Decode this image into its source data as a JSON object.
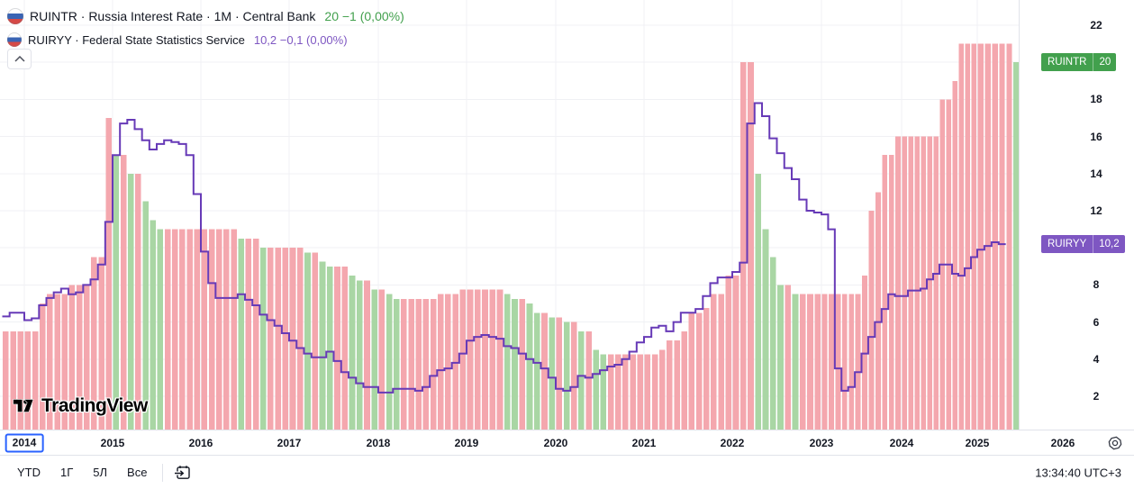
{
  "legend": {
    "rows": [
      {
        "symbol_title": "RUINTR · Russia Interest Rate · 1M · Central Bank",
        "value_text": "20 −1 (0,00%)",
        "value_color": "#42a04d"
      },
      {
        "symbol_title": "RUIRYY · Federal State Statistics Service",
        "value_text": "10,2 −0,1 (0,00%)",
        "value_color": "#7e57c2"
      }
    ],
    "flag_icon": "russia-flag"
  },
  "watermark": {
    "text": "TradingView"
  },
  "price_labels": [
    {
      "name": "RUINTR",
      "value": "20",
      "bg": "#42a04d",
      "at_value": 20
    },
    {
      "name": "RUIRYY",
      "value": "10,2",
      "bg": "#7e57c2",
      "at_value": 10.2
    }
  ],
  "toolbar": {
    "ranges": [
      "YTD",
      "1Г",
      "5Л",
      "Все"
    ],
    "clock": "13:34:40 UTC+3"
  },
  "chart_data": {
    "type": "bar",
    "subtype": "columns + step-line overlay",
    "grid": true,
    "legend_position": "top-left",
    "x_axis": {
      "tick_labels": [
        "2014",
        "2015",
        "2016",
        "2017",
        "2018",
        "2019",
        "2020",
        "2021",
        "2022",
        "2023",
        "2024",
        "2025",
        "2026"
      ],
      "boxed_tick": "2014"
    },
    "y_axis": {
      "ticks": [
        2,
        4,
        6,
        8,
        10,
        12,
        14,
        16,
        18,
        20,
        22
      ],
      "ylim": [
        0.2,
        23.2
      ],
      "side": "right"
    },
    "palette": {
      "column_rise_or_flat": "#f4a7ae",
      "column_fall": "#a9d6a4",
      "step_line": "#673ab7",
      "grid_line": "#f0f1f4",
      "axis_border": "#e1e3ea"
    },
    "series": [
      {
        "id": "RUINTR",
        "style": "columns",
        "start_year": 2013,
        "start_month": 10,
        "color_rule": "green when value falls vs previous month, pink otherwise",
        "values": [
          5.5,
          5.5,
          5.5,
          5.5,
          5.5,
          7,
          7.5,
          7.5,
          7.5,
          8,
          8,
          8,
          9.5,
          9.5,
          17,
          15,
          15,
          14,
          14,
          12.5,
          11.5,
          11,
          11,
          11,
          11,
          11,
          11,
          11,
          11,
          11,
          11,
          11,
          10.5,
          10.5,
          10.5,
          10,
          10,
          10,
          10,
          10,
          10,
          9.75,
          9.75,
          9.25,
          9,
          9,
          9,
          8.5,
          8.25,
          8.25,
          7.75,
          7.75,
          7.5,
          7.25,
          7.25,
          7.25,
          7.25,
          7.25,
          7.25,
          7.5,
          7.5,
          7.5,
          7.75,
          7.75,
          7.75,
          7.75,
          7.75,
          7.75,
          7.5,
          7.25,
          7.25,
          7,
          6.5,
          6.5,
          6.25,
          6.25,
          6,
          6,
          5.5,
          5.5,
          4.5,
          4.25,
          4.25,
          4.25,
          4.25,
          4.25,
          4.25,
          4.25,
          4.25,
          4.5,
          5,
          5,
          5.5,
          6.5,
          6.5,
          6.75,
          7.5,
          7.5,
          8.5,
          8.5,
          20,
          20,
          14,
          11,
          9.5,
          8,
          8,
          7.5,
          7.5,
          7.5,
          7.5,
          7.5,
          7.5,
          7.5,
          7.5,
          7.5,
          7.5,
          8.5,
          12,
          13,
          15,
          15,
          16,
          16,
          16,
          16,
          16,
          16,
          16,
          18,
          18,
          19,
          21,
          21,
          21,
          21,
          21,
          21,
          21,
          21,
          20
        ]
      },
      {
        "id": "RUIRYY",
        "style": "step_line",
        "start_year": 2013,
        "start_month": 10,
        "values": [
          6.3,
          6.5,
          6.5,
          6.1,
          6.2,
          6.9,
          7.3,
          7.6,
          7.8,
          7.5,
          7.6,
          8.0,
          8.3,
          9.1,
          11.4,
          15.0,
          16.7,
          16.9,
          16.4,
          15.8,
          15.3,
          15.6,
          15.8,
          15.7,
          15.6,
          15.0,
          12.9,
          9.8,
          8.1,
          7.3,
          7.3,
          7.3,
          7.5,
          7.2,
          6.9,
          6.4,
          6.1,
          5.8,
          5.4,
          5.0,
          4.6,
          4.3,
          4.1,
          4.1,
          4.4,
          3.9,
          3.3,
          3.0,
          2.7,
          2.5,
          2.5,
          2.2,
          2.2,
          2.4,
          2.4,
          2.4,
          2.3,
          2.5,
          3.1,
          3.4,
          3.5,
          3.8,
          4.3,
          5.0,
          5.2,
          5.3,
          5.2,
          5.1,
          4.7,
          4.6,
          4.3,
          4.0,
          3.8,
          3.5,
          3.0,
          2.4,
          2.3,
          2.5,
          3.1,
          3.0,
          3.2,
          3.4,
          3.6,
          3.7,
          4.0,
          4.4,
          4.9,
          5.2,
          5.7,
          5.8,
          5.5,
          6.0,
          6.5,
          6.5,
          6.7,
          7.4,
          8.1,
          8.4,
          8.4,
          8.7,
          9.2,
          16.7,
          17.8,
          17.1,
          15.9,
          15.1,
          14.3,
          13.7,
          12.6,
          12.0,
          11.9,
          11.8,
          11.0,
          3.5,
          2.3,
          2.5,
          3.3,
          4.3,
          5.2,
          6.0,
          6.7,
          7.5,
          7.4,
          7.4,
          7.7,
          7.7,
          7.8,
          8.3,
          8.6,
          9.1,
          9.1,
          8.6,
          8.5,
          8.9,
          9.5,
          9.9,
          10.1,
          10.3,
          10.2
        ]
      }
    ]
  }
}
